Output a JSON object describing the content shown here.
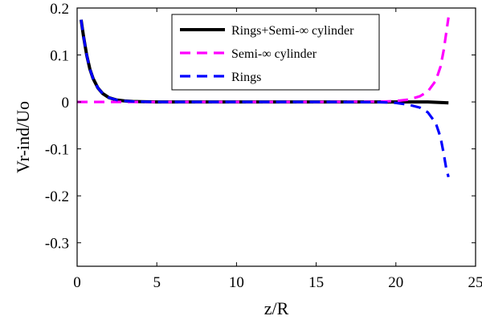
{
  "chart_data": {
    "type": "line",
    "xlabel": "z/R",
    "ylabel": "Vr-ind/Uo",
    "xlim": [
      0,
      25
    ],
    "ylim": [
      -0.35,
      0.2
    ],
    "xticks": [
      0,
      5,
      10,
      15,
      20,
      25
    ],
    "yticks": [
      -0.3,
      -0.2,
      -0.1,
      0,
      0.1,
      0.2
    ],
    "xtick_labels": [
      "0",
      "5",
      "10",
      "15",
      "20",
      "25"
    ],
    "ytick_labels": [
      "-0.3",
      "-0.2",
      "-0.1",
      "0",
      "0.1",
      "0.2"
    ],
    "grid": false,
    "legend_position": "top-right",
    "series": [
      {
        "name": "Rings+Semi-∞ cylinder",
        "color": "#000000",
        "style": "solid",
        "x": [
          0.25,
          0.4,
          0.6,
          0.8,
          1.0,
          1.3,
          1.6,
          2.0,
          2.5,
          3.0,
          3.5,
          4.0,
          5.0,
          7.0,
          10.0,
          15.0,
          20.0,
          21.0,
          22.0,
          23.3
        ],
        "y": [
          0.175,
          0.14,
          0.1,
          0.07,
          0.05,
          0.03,
          0.018,
          0.009,
          0.004,
          0.002,
          0.001,
          0.0005,
          0.0,
          0.0,
          0.0,
          0.0,
          0.0,
          0.0,
          0.0,
          -0.002
        ]
      },
      {
        "name": "Semi-∞ cylinder",
        "color": "#ff00ff",
        "style": "dashed",
        "x": [
          0.0,
          5.0,
          10.0,
          15.0,
          19.0,
          20.0,
          20.8,
          21.5,
          22.0,
          22.5,
          22.8,
          23.0,
          23.15,
          23.3
        ],
        "y": [
          0.0,
          0.0,
          0.0,
          0.0,
          0.0005,
          0.002,
          0.005,
          0.012,
          0.022,
          0.045,
          0.075,
          0.11,
          0.145,
          0.18
        ]
      },
      {
        "name": "Rings",
        "color": "#0000ff",
        "style": "dashed",
        "x": [
          0.25,
          0.4,
          0.6,
          0.8,
          1.0,
          1.3,
          1.6,
          2.0,
          2.5,
          3.0,
          3.5,
          4.0,
          5.0,
          10.0,
          15.0,
          19.0,
          20.0,
          20.8,
          21.5,
          22.0,
          22.5,
          22.8,
          23.0,
          23.15,
          23.3
        ],
        "y": [
          0.175,
          0.14,
          0.1,
          0.07,
          0.05,
          0.03,
          0.018,
          0.009,
          0.004,
          0.002,
          0.001,
          0.0005,
          0.0,
          0.0,
          0.0,
          -0.0005,
          -0.002,
          -0.006,
          -0.012,
          -0.022,
          -0.045,
          -0.075,
          -0.11,
          -0.14,
          -0.16
        ]
      }
    ]
  }
}
